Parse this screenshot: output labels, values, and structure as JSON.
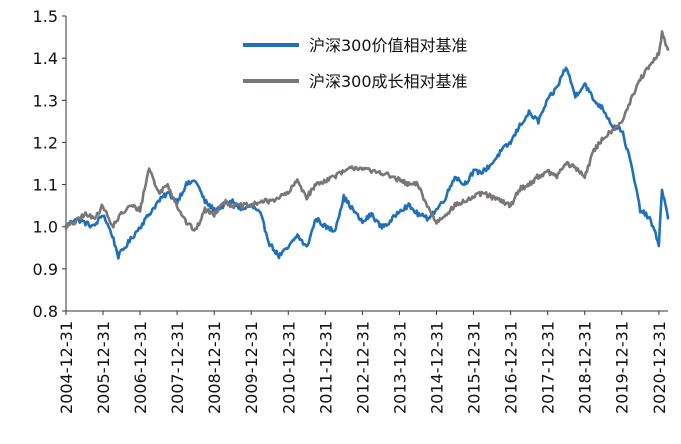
{
  "chart_data": {
    "type": "line",
    "title": "",
    "xlabel": "",
    "ylabel": "",
    "ylim": [
      0.8,
      1.5
    ],
    "yticks": [
      "0.8",
      "0.9",
      "1.0",
      "1.1",
      "1.2",
      "1.3",
      "1.4",
      "1.5"
    ],
    "xlim": [
      "2004-12-31",
      "2021-03-31"
    ],
    "x_tick_labels": [
      "2004-12-31",
      "2005-12-31",
      "2006-12-31",
      "2007-12-31",
      "2008-12-31",
      "2009-12-31",
      "2010-12-31",
      "2011-12-31",
      "2012-12-31",
      "2013-12-31",
      "2014-12-31",
      "2015-12-31",
      "2016-12-31",
      "2017-12-31",
      "2018-12-31",
      "2019-12-31",
      "2020-12-31"
    ],
    "grid": false,
    "legend_position": "top-center",
    "series": [
      {
        "name": "沪深300价值相对基准",
        "color": "#1f6fba",
        "points": [
          [
            "2004-12-31",
            1.0
          ],
          [
            "2005-03-31",
            1.02
          ],
          [
            "2005-06-30",
            1.01
          ],
          [
            "2005-09-30",
            1.0
          ],
          [
            "2005-12-31",
            1.03
          ],
          [
            "2006-03-31",
            0.98
          ],
          [
            "2006-05-31",
            0.93
          ],
          [
            "2006-09-30",
            0.97
          ],
          [
            "2006-12-31",
            1.0
          ],
          [
            "2007-03-31",
            1.03
          ],
          [
            "2007-06-30",
            1.06
          ],
          [
            "2007-09-30",
            1.08
          ],
          [
            "2007-12-31",
            1.06
          ],
          [
            "2008-03-31",
            1.1
          ],
          [
            "2008-06-30",
            1.11
          ],
          [
            "2008-09-30",
            1.06
          ],
          [
            "2008-12-31",
            1.04
          ],
          [
            "2009-06-30",
            1.06
          ],
          [
            "2009-09-30",
            1.04
          ],
          [
            "2009-12-31",
            1.05
          ],
          [
            "2010-03-31",
            1.03
          ],
          [
            "2010-06-30",
            0.96
          ],
          [
            "2010-09-30",
            0.93
          ],
          [
            "2010-12-31",
            0.95
          ],
          [
            "2011-03-31",
            0.98
          ],
          [
            "2011-06-30",
            0.95
          ],
          [
            "2011-09-30",
            1.02
          ],
          [
            "2011-12-31",
            1.0
          ],
          [
            "2012-03-31",
            0.99
          ],
          [
            "2012-06-30",
            1.07
          ],
          [
            "2012-09-30",
            1.04
          ],
          [
            "2012-12-31",
            1.01
          ],
          [
            "2013-03-31",
            1.03
          ],
          [
            "2013-06-30",
            1.0
          ],
          [
            "2013-09-30",
            1.01
          ],
          [
            "2013-12-31",
            1.04
          ],
          [
            "2014-03-31",
            1.05
          ],
          [
            "2014-06-30",
            1.03
          ],
          [
            "2014-09-30",
            1.02
          ],
          [
            "2014-12-31",
            1.04
          ],
          [
            "2015-03-31",
            1.07
          ],
          [
            "2015-06-30",
            1.12
          ],
          [
            "2015-09-30",
            1.1
          ],
          [
            "2015-12-31",
            1.13
          ],
          [
            "2016-03-31",
            1.13
          ],
          [
            "2016-06-30",
            1.15
          ],
          [
            "2016-09-30",
            1.18
          ],
          [
            "2016-12-31",
            1.2
          ],
          [
            "2017-03-31",
            1.24
          ],
          [
            "2017-06-30",
            1.27
          ],
          [
            "2017-09-30",
            1.25
          ],
          [
            "2017-12-31",
            1.3
          ],
          [
            "2018-03-31",
            1.33
          ],
          [
            "2018-06-30",
            1.38
          ],
          [
            "2018-09-30",
            1.31
          ],
          [
            "2018-12-31",
            1.34
          ],
          [
            "2019-03-31",
            1.3
          ],
          [
            "2019-06-30",
            1.28
          ],
          [
            "2019-09-30",
            1.24
          ],
          [
            "2019-12-31",
            1.23
          ],
          [
            "2020-03-31",
            1.15
          ],
          [
            "2020-06-30",
            1.04
          ],
          [
            "2020-09-30",
            1.02
          ],
          [
            "2020-12-31",
            0.96
          ],
          [
            "2021-01-31",
            1.09
          ],
          [
            "2021-03-31",
            1.02
          ]
        ]
      },
      {
        "name": "沪深300成长相对基准",
        "color": "#7a7677",
        "points": [
          [
            "2004-12-31",
            1.0
          ],
          [
            "2005-03-31",
            1.01
          ],
          [
            "2005-06-30",
            1.03
          ],
          [
            "2005-09-30",
            1.02
          ],
          [
            "2005-12-31",
            1.05
          ],
          [
            "2006-03-31",
            1.0
          ],
          [
            "2006-06-30",
            1.03
          ],
          [
            "2006-09-30",
            1.05
          ],
          [
            "2006-12-31",
            1.04
          ],
          [
            "2007-03-31",
            1.14
          ],
          [
            "2007-06-30",
            1.08
          ],
          [
            "2007-09-30",
            1.1
          ],
          [
            "2007-12-31",
            1.05
          ],
          [
            "2008-03-31",
            1.01
          ],
          [
            "2008-06-30",
            0.99
          ],
          [
            "2008-09-30",
            1.04
          ],
          [
            "2008-12-31",
            1.03
          ],
          [
            "2009-03-31",
            1.06
          ],
          [
            "2009-06-30",
            1.05
          ],
          [
            "2009-09-30",
            1.05
          ],
          [
            "2009-12-31",
            1.05
          ],
          [
            "2010-03-31",
            1.06
          ],
          [
            "2010-06-30",
            1.06
          ],
          [
            "2010-09-30",
            1.07
          ],
          [
            "2010-12-31",
            1.08
          ],
          [
            "2011-03-31",
            1.11
          ],
          [
            "2011-06-30",
            1.07
          ],
          [
            "2011-09-30",
            1.1
          ],
          [
            "2011-12-31",
            1.11
          ],
          [
            "2012-03-31",
            1.12
          ],
          [
            "2012-06-30",
            1.13
          ],
          [
            "2012-09-30",
            1.14
          ],
          [
            "2012-12-31",
            1.14
          ],
          [
            "2013-03-31",
            1.13
          ],
          [
            "2013-06-30",
            1.13
          ],
          [
            "2013-09-30",
            1.12
          ],
          [
            "2013-12-31",
            1.11
          ],
          [
            "2014-03-31",
            1.1
          ],
          [
            "2014-06-30",
            1.1
          ],
          [
            "2014-09-30",
            1.05
          ],
          [
            "2014-12-31",
            1.01
          ],
          [
            "2015-03-31",
            1.03
          ],
          [
            "2015-06-30",
            1.05
          ],
          [
            "2015-09-30",
            1.06
          ],
          [
            "2015-12-31",
            1.07
          ],
          [
            "2016-03-31",
            1.08
          ],
          [
            "2016-06-30",
            1.07
          ],
          [
            "2016-09-30",
            1.06
          ],
          [
            "2016-12-31",
            1.05
          ],
          [
            "2017-03-31",
            1.09
          ],
          [
            "2017-06-30",
            1.1
          ],
          [
            "2017-09-30",
            1.12
          ],
          [
            "2017-12-31",
            1.13
          ],
          [
            "2018-03-31",
            1.12
          ],
          [
            "2018-06-30",
            1.15
          ],
          [
            "2018-09-30",
            1.14
          ],
          [
            "2018-12-31",
            1.12
          ],
          [
            "2019-03-31",
            1.18
          ],
          [
            "2019-06-30",
            1.21
          ],
          [
            "2019-09-30",
            1.23
          ],
          [
            "2019-12-31",
            1.25
          ],
          [
            "2020-03-31",
            1.3
          ],
          [
            "2020-06-30",
            1.35
          ],
          [
            "2020-09-30",
            1.38
          ],
          [
            "2020-12-31",
            1.41
          ],
          [
            "2021-01-31",
            1.46
          ],
          [
            "2021-03-31",
            1.42
          ]
        ]
      }
    ]
  }
}
